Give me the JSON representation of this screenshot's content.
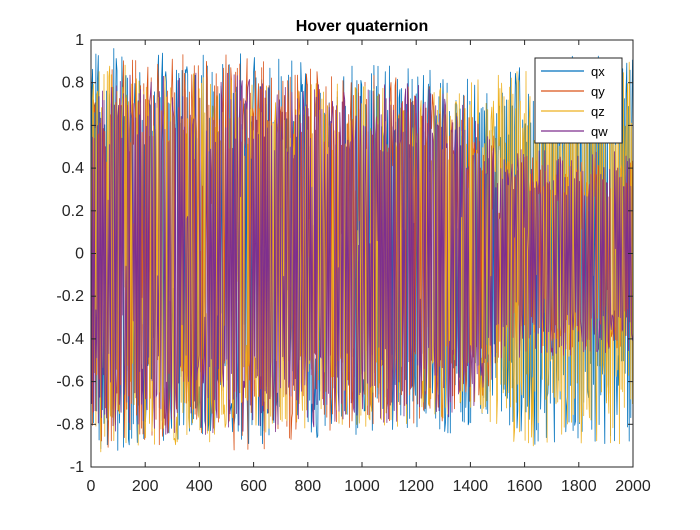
{
  "chart_data": {
    "type": "line",
    "title": "Hover quaternion",
    "xlabel": "",
    "ylabel": "",
    "xlim": [
      0,
      2000
    ],
    "ylim": [
      -1,
      1
    ],
    "xticks": [
      0,
      200,
      400,
      600,
      800,
      1000,
      1200,
      1400,
      1600,
      1800,
      2000
    ],
    "xtick_labels": [
      "0",
      "200",
      "400",
      "600",
      "800",
      "1000",
      "1200",
      "1400",
      "1600",
      "1800",
      "2000"
    ],
    "yticks": [
      -1,
      -0.8,
      -0.6,
      -0.4,
      -0.2,
      0,
      0.2,
      0.4,
      0.6,
      0.8,
      1
    ],
    "ytick_labels": [
      "-1",
      "-0.8",
      "-0.6",
      "-0.4",
      "-0.2",
      "0",
      "0.2",
      "0.4",
      "0.6",
      "0.8",
      "1"
    ],
    "grid": false,
    "legend_position": "top-right",
    "series": [
      {
        "name": "qx",
        "color": "#0072BD",
        "envelope": {
          "x": [
            0,
            200,
            400,
            600,
            800,
            1000,
            1200,
            1400,
            1500,
            1550,
            1600,
            1800,
            2000
          ],
          "low": [
            -0.95,
            -0.9,
            -0.88,
            -0.9,
            -0.88,
            -0.85,
            -0.85,
            -0.85,
            -0.7,
            -0.85,
            -0.9,
            -0.9,
            -0.9
          ],
          "high": [
            0.97,
            0.95,
            0.93,
            0.95,
            0.9,
            0.88,
            0.9,
            0.85,
            0.7,
            0.92,
            0.92,
            0.93,
            0.93
          ]
        }
      },
      {
        "name": "qy",
        "color": "#D95319",
        "envelope": {
          "x": [
            0,
            200,
            400,
            600,
            800,
            1000,
            1200,
            1400,
            1500,
            1550,
            1600,
            1800,
            2000
          ],
          "low": [
            -0.92,
            -0.9,
            -0.9,
            -0.95,
            -0.85,
            -0.82,
            -0.82,
            -0.75,
            -0.6,
            -0.45,
            -0.45,
            -0.45,
            -0.45
          ],
          "high": [
            0.93,
            0.9,
            0.95,
            0.93,
            0.9,
            0.85,
            0.82,
            0.75,
            0.55,
            0.45,
            0.45,
            0.45,
            0.45
          ]
        }
      },
      {
        "name": "qz",
        "color": "#EDB120",
        "envelope": {
          "x": [
            0,
            200,
            400,
            600,
            800,
            1000,
            1200,
            1400,
            1500,
            1550,
            1600,
            1800,
            2000
          ],
          "low": [
            -0.95,
            -0.9,
            -0.9,
            -0.85,
            -0.82,
            -0.82,
            -0.82,
            -0.8,
            -0.85,
            -0.92,
            -0.92,
            -0.9,
            -0.9
          ],
          "high": [
            0.9,
            0.88,
            0.85,
            0.82,
            0.8,
            0.8,
            0.78,
            0.8,
            0.85,
            0.92,
            0.9,
            0.92,
            0.9
          ]
        }
      },
      {
        "name": "qw",
        "color": "#7E2F8E",
        "envelope": {
          "x": [
            0,
            200,
            400,
            600,
            800,
            1000,
            1200,
            1400,
            1500,
            1550,
            1600,
            1800,
            2000
          ],
          "low": [
            -0.85,
            -0.85,
            -0.85,
            -0.85,
            -0.83,
            -0.8,
            -0.8,
            -0.75,
            -0.55,
            -0.5,
            -0.5,
            -0.48,
            -0.48
          ],
          "high": [
            0.85,
            0.85,
            0.85,
            0.85,
            0.83,
            0.8,
            0.8,
            0.7,
            0.5,
            0.5,
            0.5,
            0.48,
            0.48
          ]
        }
      }
    ]
  }
}
